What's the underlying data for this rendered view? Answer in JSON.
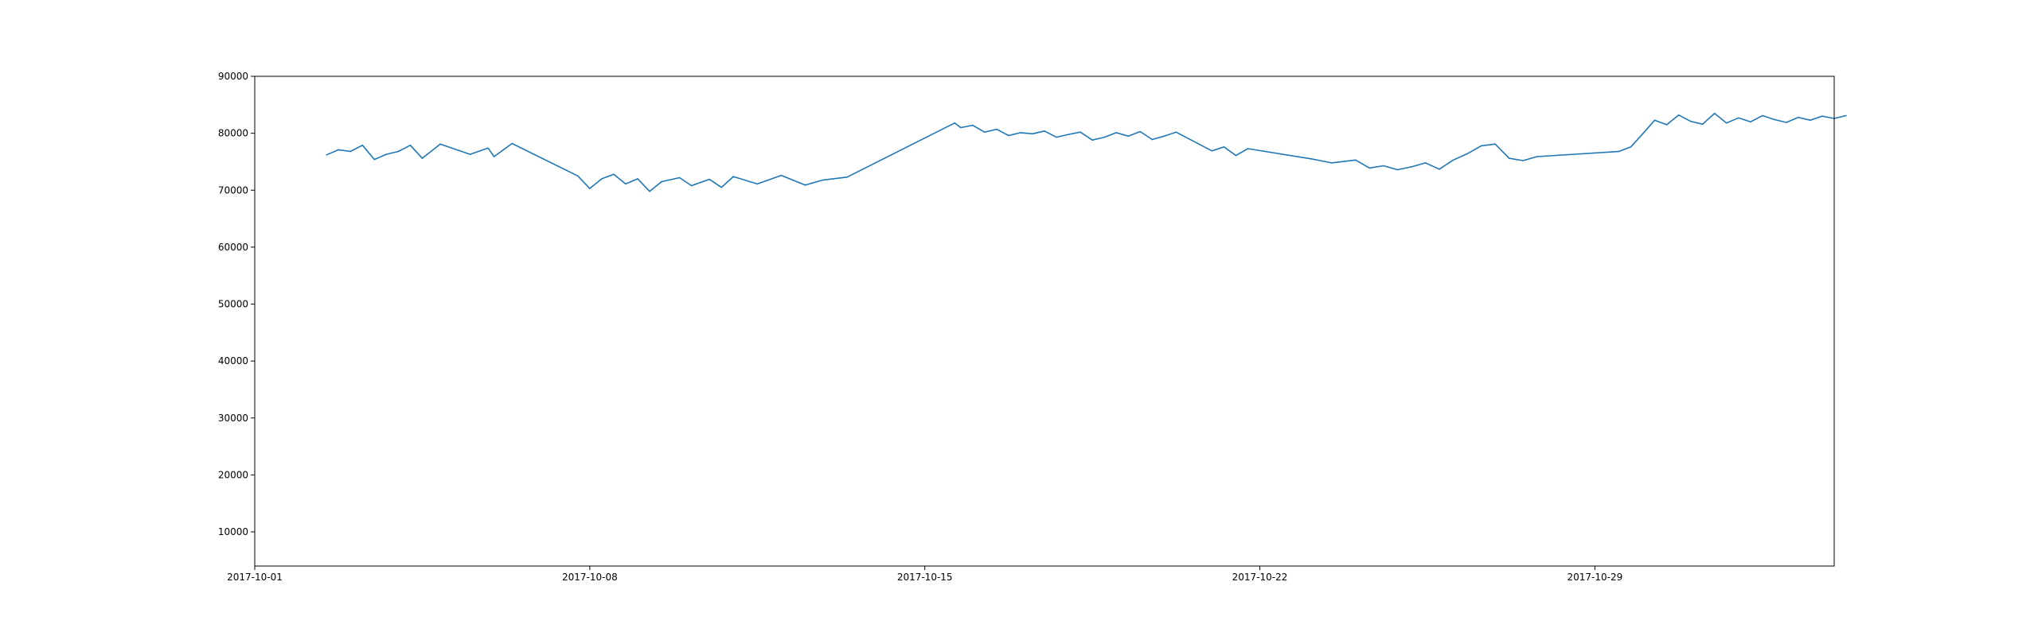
{
  "chart_data": {
    "type": "line",
    "title": "",
    "xlabel": "",
    "ylabel": "",
    "grid": false,
    "xlim": [
      "2017-10-01",
      "2017-11-03"
    ],
    "ylim": [
      4000,
      90000
    ],
    "xticks": [
      "2017-10-01",
      "2017-10-08",
      "2017-10-15",
      "2017-10-22",
      "2017-10-29"
    ],
    "yticks": [
      10000,
      20000,
      30000,
      40000,
      50000,
      60000,
      70000,
      80000,
      90000
    ],
    "colors": {
      "line": "#1f77b4",
      "axes": "#000000",
      "background": "#ffffff"
    },
    "series": [
      {
        "x": [
          "2017-10-02 12:00",
          "2017-10-02 18:00",
          "2017-10-03 00:00",
          "2017-10-03 06:00",
          "2017-10-03 12:00",
          "2017-10-03 18:00",
          "2017-10-04 00:00",
          "2017-10-04 06:00",
          "2017-10-04 12:00",
          "2017-10-04 21:00",
          "2017-10-05 12:00",
          "2017-10-05 21:00",
          "2017-10-06 00:00",
          "2017-10-06 09:00",
          "2017-10-07 18:00",
          "2017-10-08 00:00",
          "2017-10-08 06:00",
          "2017-10-08 12:00",
          "2017-10-08 18:00",
          "2017-10-09 00:00",
          "2017-10-09 06:00",
          "2017-10-09 12:00",
          "2017-10-09 21:00",
          "2017-10-10 03:00",
          "2017-10-10 12:00",
          "2017-10-10 18:00",
          "2017-10-11 00:00",
          "2017-10-11 12:00",
          "2017-10-12 00:00",
          "2017-10-12 12:00",
          "2017-10-12 21:00",
          "2017-10-13 09:00",
          "2017-10-15 15:00",
          "2017-10-15 18:00",
          "2017-10-16 00:00",
          "2017-10-16 06:00",
          "2017-10-16 12:00",
          "2017-10-16 18:00",
          "2017-10-17 00:00",
          "2017-10-17 06:00",
          "2017-10-17 12:00",
          "2017-10-17 18:00",
          "2017-10-18 00:00",
          "2017-10-18 06:00",
          "2017-10-18 12:00",
          "2017-10-18 18:00",
          "2017-10-19 00:00",
          "2017-10-19 06:00",
          "2017-10-19 12:00",
          "2017-10-19 18:00",
          "2017-10-20 00:00",
          "2017-10-20 06:00",
          "2017-10-21 00:00",
          "2017-10-21 06:00",
          "2017-10-21 12:00",
          "2017-10-21 18:00",
          "2017-10-23 02:00",
          "2017-10-23 12:00",
          "2017-10-24 00:00",
          "2017-10-24 07:00",
          "2017-10-24 14:00",
          "2017-10-24 21:00",
          "2017-10-25 04:00",
          "2017-10-25 11:00",
          "2017-10-25 18:00",
          "2017-10-26 01:00",
          "2017-10-26 08:00",
          "2017-10-26 15:00",
          "2017-10-26 22:00",
          "2017-10-27 05:00",
          "2017-10-27 12:00",
          "2017-10-27 19:00",
          "2017-10-29 12:00",
          "2017-10-29 18:00",
          "2017-10-30 00:00",
          "2017-10-30 06:00",
          "2017-10-30 12:00",
          "2017-10-30 18:00",
          "2017-10-31 00:00",
          "2017-10-31 06:00",
          "2017-10-31 12:00",
          "2017-10-31 18:00",
          "2017-11-01 00:00",
          "2017-11-01 06:00",
          "2017-11-01 12:00",
          "2017-11-01 18:00",
          "2017-11-02 00:00",
          "2017-11-02 06:00",
          "2017-11-02 12:00",
          "2017-11-02 18:00",
          "2017-11-03 00:00",
          "2017-11-03 06:00"
        ],
        "values": [
          76200,
          77100,
          76800,
          77900,
          75400,
          76300,
          76800,
          77900,
          75600,
          78100,
          76300,
          77400,
          75900,
          78200,
          72500,
          70300,
          72000,
          72800,
          71100,
          72000,
          69800,
          71500,
          72200,
          70800,
          71900,
          70500,
          72400,
          71100,
          72600,
          70900,
          71800,
          72300,
          81800,
          81000,
          81400,
          80200,
          80700,
          79600,
          80100,
          79900,
          80400,
          79300,
          79800,
          80200,
          78800,
          79300,
          80100,
          79500,
          80300,
          78900,
          79500,
          80200,
          76900,
          77600,
          76100,
          77300,
          75500,
          74800,
          75300,
          73900,
          74300,
          73600,
          74100,
          74800,
          73700,
          75300,
          76400,
          77800,
          78100,
          75600,
          75200,
          75900,
          76800,
          77600,
          79900,
          82300,
          81500,
          83200,
          82100,
          81600,
          83500,
          81800,
          82700,
          82000,
          83100,
          82400,
          81900,
          82800,
          82300,
          83000,
          82600,
          83100
        ]
      }
    ]
  }
}
